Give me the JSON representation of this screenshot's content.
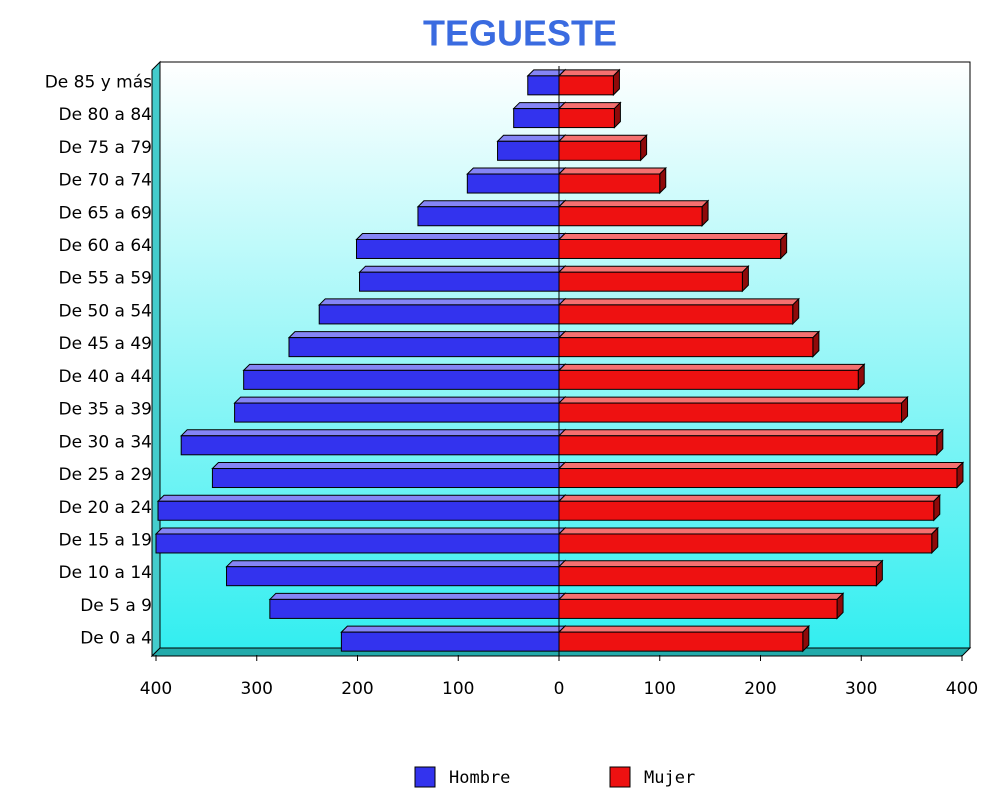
{
  "chart_data": {
    "type": "pyramid",
    "title": "TEGUESTE",
    "categories": [
      "De 85 y más",
      "De 80 a 84",
      "De 75 a 79",
      "De 70 a 74",
      "De 65 a 69",
      "De 60 a 64",
      "De 55 a 59",
      "De 50 a 54",
      "De 45 a 49",
      "De 40 a 44",
      "De 35 a 39",
      "De 30 a 34",
      "De 25 a 29",
      "De 20 a 24",
      "De 15 a 19",
      "De 10 a 14",
      "De 5 a 9",
      "De 0 a 4"
    ],
    "series": [
      {
        "name": "Hombre",
        "color": "#3333ee",
        "values": [
          -31,
          -45,
          -61,
          -91,
          -140,
          -201,
          -198,
          -238,
          -268,
          -313,
          -322,
          -375,
          -344,
          -398,
          -400,
          -330,
          -287,
          -216
        ]
      },
      {
        "name": "Mujer",
        "color": "#ee1111",
        "values": [
          54,
          55,
          81,
          100,
          142,
          220,
          182,
          232,
          252,
          297,
          340,
          375,
          395,
          372,
          370,
          315,
          276,
          242
        ]
      }
    ],
    "xlim": [
      -400,
      400
    ],
    "xticks": [
      {
        "value": -400,
        "label": "400"
      },
      {
        "value": -300,
        "label": "300"
      },
      {
        "value": -200,
        "label": "200"
      },
      {
        "value": -100,
        "label": "100"
      },
      0,
      100,
      200,
      300,
      400
    ]
  }
}
